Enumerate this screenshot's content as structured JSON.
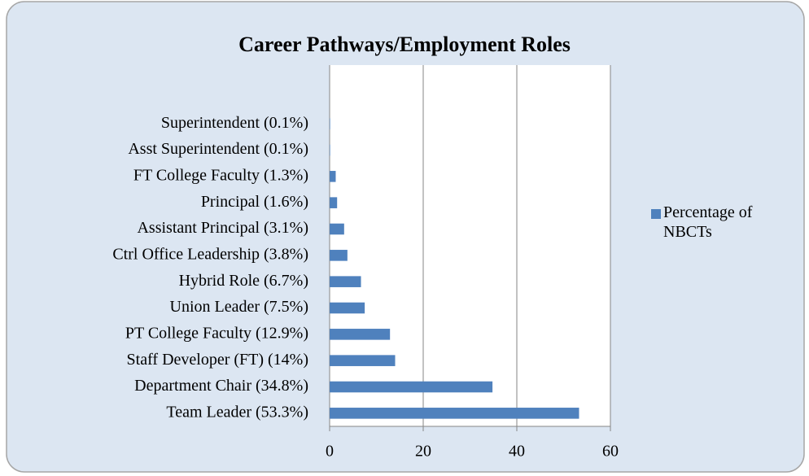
{
  "chart_data": {
    "type": "bar",
    "orientation": "horizontal",
    "title": "Career Pathways/Employment Roles",
    "categories": [
      "Superintendent (0.1%)",
      "Asst Superintendent (0.1%)",
      "FT College Faculty (1.3%)",
      "Principal (1.6%)",
      "Assistant Principal (3.1%)",
      "Ctrl Office Leadership (3.8%)",
      "Hybrid Role (6.7%)",
      "Union Leader (7.5%)",
      "PT College Faculty (12.9%)",
      "Staff Developer (FT) (14%)",
      "Department Chair (34.8%)",
      "Team Leader (53.3%)"
    ],
    "series": [
      {
        "name": "Percentage of NBCTs",
        "color": "#4f81bd",
        "values": [
          0.1,
          0.1,
          1.3,
          1.6,
          3.1,
          3.8,
          6.7,
          7.5,
          12.9,
          14,
          34.8,
          53.3
        ]
      }
    ],
    "xlim": [
      0,
      60
    ],
    "xticks": [
      0,
      20,
      40,
      60
    ],
    "grid": true,
    "legend": "right"
  }
}
